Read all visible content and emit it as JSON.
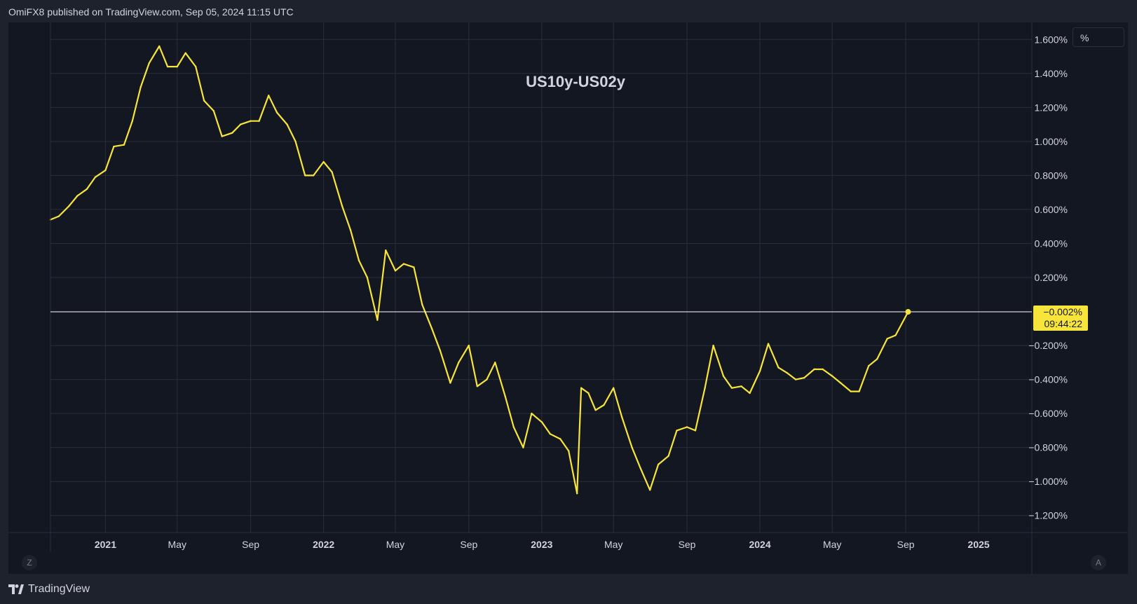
{
  "header": {
    "author": "OmiFX8",
    "published_text": "published on TradingView.com, Sep 05, 2024 11:15 UTC"
  },
  "footer": {
    "brand": "TradingView"
  },
  "controls": {
    "unit_label": "%",
    "zoom_label": "Z",
    "auto_label": "A"
  },
  "colors": {
    "background": "#131722",
    "outer": "#1e222d",
    "grid": "#2a2e39",
    "series": "#f7e53b",
    "text": "#d1d4dc",
    "hline": "#ffffff"
  },
  "chart_data": {
    "type": "line",
    "title": "US10y-US02y",
    "xlabel": "",
    "ylabel": "",
    "grid": true,
    "x_axis": {
      "domain": [
        "2020-10-01",
        "2025-03-31"
      ],
      "ticks": [
        {
          "date": "2021-01-01",
          "label": "2021",
          "bold": true
        },
        {
          "date": "2021-05-01",
          "label": "May",
          "bold": false
        },
        {
          "date": "2021-09-01",
          "label": "Sep",
          "bold": false
        },
        {
          "date": "2022-01-01",
          "label": "2022",
          "bold": true
        },
        {
          "date": "2022-05-01",
          "label": "May",
          "bold": false
        },
        {
          "date": "2022-09-01",
          "label": "Sep",
          "bold": false
        },
        {
          "date": "2023-01-01",
          "label": "2023",
          "bold": true
        },
        {
          "date": "2023-05-01",
          "label": "May",
          "bold": false
        },
        {
          "date": "2023-09-01",
          "label": "Sep",
          "bold": false
        },
        {
          "date": "2024-01-01",
          "label": "2024",
          "bold": true
        },
        {
          "date": "2024-05-01",
          "label": "May",
          "bold": false
        },
        {
          "date": "2024-09-01",
          "label": "Sep",
          "bold": false
        },
        {
          "date": "2025-01-01",
          "label": "2025",
          "bold": true
        }
      ]
    },
    "y_axis": {
      "ylim": [
        -1.3,
        1.7
      ],
      "ticks": [
        1.6,
        1.4,
        1.2,
        1.0,
        0.8,
        0.6,
        0.4,
        0.2,
        -0.2,
        -0.4,
        -0.6,
        -0.8,
        -1.0,
        -1.2
      ],
      "tick_labels": [
        "1.600%",
        "1.400%",
        "1.200%",
        "1.000%",
        "0.800%",
        "0.600%",
        "0.400%",
        "0.200%",
        "−0.200%",
        "−0.400%",
        "−0.600%",
        "−0.800%",
        "−1.000%",
        "−1.200%"
      ]
    },
    "last_value": {
      "value": -0.002,
      "label": "−0.002%",
      "countdown": "09:44:22"
    },
    "series": [
      {
        "color": "#f7e53b",
        "points": [
          [
            "2020-10-01",
            0.54
          ],
          [
            "2020-10-15",
            0.56
          ],
          [
            "2020-11-01",
            0.62
          ],
          [
            "2020-11-15",
            0.68
          ],
          [
            "2020-12-01",
            0.72
          ],
          [
            "2020-12-15",
            0.79
          ],
          [
            "2021-01-01",
            0.83
          ],
          [
            "2021-01-15",
            0.97
          ],
          [
            "2021-02-01",
            0.98
          ],
          [
            "2021-02-15",
            1.12
          ],
          [
            "2021-03-01",
            1.32
          ],
          [
            "2021-03-15",
            1.46
          ],
          [
            "2021-04-01",
            1.56
          ],
          [
            "2021-04-15",
            1.44
          ],
          [
            "2021-05-01",
            1.44
          ],
          [
            "2021-05-15",
            1.52
          ],
          [
            "2021-06-01",
            1.44
          ],
          [
            "2021-06-15",
            1.24
          ],
          [
            "2021-07-01",
            1.18
          ],
          [
            "2021-07-15",
            1.03
          ],
          [
            "2021-08-01",
            1.05
          ],
          [
            "2021-08-15",
            1.1
          ],
          [
            "2021-09-01",
            1.12
          ],
          [
            "2021-09-15",
            1.12
          ],
          [
            "2021-10-01",
            1.27
          ],
          [
            "2021-10-15",
            1.17
          ],
          [
            "2021-11-01",
            1.1
          ],
          [
            "2021-11-15",
            1.0
          ],
          [
            "2021-12-01",
            0.8
          ],
          [
            "2021-12-15",
            0.8
          ],
          [
            "2022-01-01",
            0.88
          ],
          [
            "2022-01-15",
            0.82
          ],
          [
            "2022-02-01",
            0.62
          ],
          [
            "2022-02-15",
            0.48
          ],
          [
            "2022-03-01",
            0.3
          ],
          [
            "2022-03-15",
            0.2
          ],
          [
            "2022-04-01",
            -0.05
          ],
          [
            "2022-04-15",
            0.36
          ],
          [
            "2022-05-01",
            0.24
          ],
          [
            "2022-05-15",
            0.28
          ],
          [
            "2022-06-01",
            0.26
          ],
          [
            "2022-06-15",
            0.04
          ],
          [
            "2022-07-01",
            -0.1
          ],
          [
            "2022-07-15",
            -0.23
          ],
          [
            "2022-08-01",
            -0.42
          ],
          [
            "2022-08-15",
            -0.3
          ],
          [
            "2022-09-01",
            -0.2
          ],
          [
            "2022-09-15",
            -0.44
          ],
          [
            "2022-10-01",
            -0.4
          ],
          [
            "2022-10-15",
            -0.3
          ],
          [
            "2022-11-01",
            -0.5
          ],
          [
            "2022-11-15",
            -0.68
          ],
          [
            "2022-12-01",
            -0.8
          ],
          [
            "2022-12-15",
            -0.6
          ],
          [
            "2023-01-01",
            -0.65
          ],
          [
            "2023-01-15",
            -0.72
          ],
          [
            "2023-02-01",
            -0.75
          ],
          [
            "2023-02-15",
            -0.82
          ],
          [
            "2023-03-01",
            -1.07
          ],
          [
            "2023-03-08",
            -0.45
          ],
          [
            "2023-03-20",
            -0.48
          ],
          [
            "2023-04-01",
            -0.58
          ],
          [
            "2023-04-15",
            -0.55
          ],
          [
            "2023-05-01",
            -0.45
          ],
          [
            "2023-05-15",
            -0.62
          ],
          [
            "2023-06-01",
            -0.8
          ],
          [
            "2023-06-15",
            -0.92
          ],
          [
            "2023-07-01",
            -1.05
          ],
          [
            "2023-07-15",
            -0.9
          ],
          [
            "2023-08-01",
            -0.85
          ],
          [
            "2023-08-15",
            -0.7
          ],
          [
            "2023-09-01",
            -0.68
          ],
          [
            "2023-09-15",
            -0.7
          ],
          [
            "2023-10-01",
            -0.45
          ],
          [
            "2023-10-15",
            -0.2
          ],
          [
            "2023-11-01",
            -0.38
          ],
          [
            "2023-11-15",
            -0.45
          ],
          [
            "2023-12-01",
            -0.44
          ],
          [
            "2023-12-15",
            -0.48
          ],
          [
            "2024-01-01",
            -0.35
          ],
          [
            "2024-01-15",
            -0.19
          ],
          [
            "2024-02-01",
            -0.33
          ],
          [
            "2024-02-15",
            -0.36
          ],
          [
            "2024-03-01",
            -0.4
          ],
          [
            "2024-03-15",
            -0.39
          ],
          [
            "2024-04-01",
            -0.34
          ],
          [
            "2024-04-15",
            -0.34
          ],
          [
            "2024-05-01",
            -0.38
          ],
          [
            "2024-05-15",
            -0.42
          ],
          [
            "2024-06-01",
            -0.47
          ],
          [
            "2024-06-15",
            -0.47
          ],
          [
            "2024-07-01",
            -0.32
          ],
          [
            "2024-07-15",
            -0.28
          ],
          [
            "2024-08-01",
            -0.16
          ],
          [
            "2024-08-15",
            -0.14
          ],
          [
            "2024-09-05",
            -0.002
          ]
        ]
      }
    ]
  }
}
